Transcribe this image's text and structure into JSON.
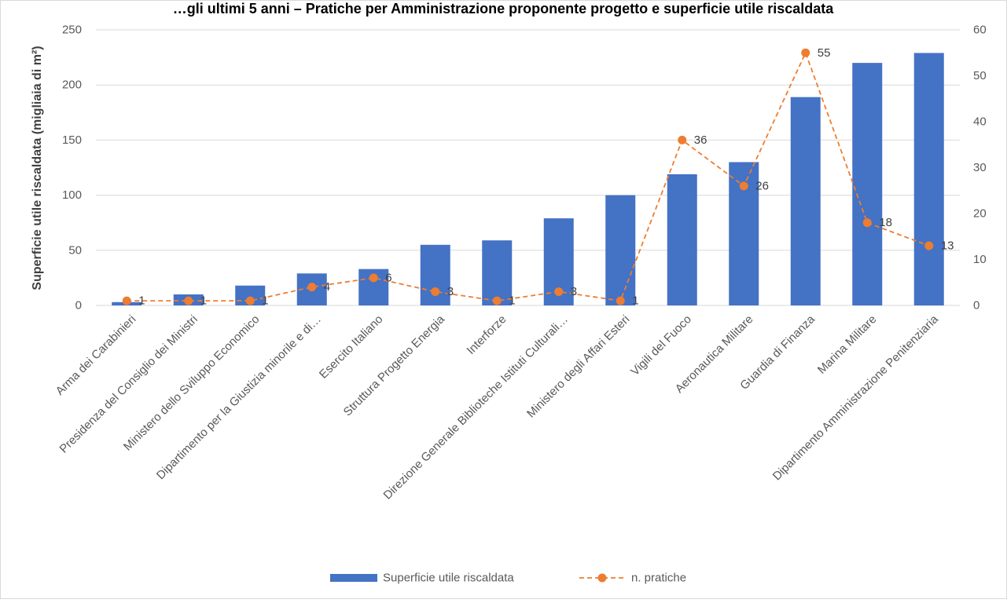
{
  "chart_data": {
    "type": "bar",
    "title": "…gli ultimi 5 anni – Pratiche per Amministrazione proponente progetto e superficie utile riscaldata",
    "ylabel": "Superficie utile riscaldata (migliaia di m²)",
    "ylim": [
      0,
      250
    ],
    "y_ticks": [
      0,
      50,
      100,
      150,
      200,
      250
    ],
    "y2lim": [
      0,
      60
    ],
    "y2_ticks": [
      0,
      10,
      20,
      30,
      40,
      50,
      60
    ],
    "grid": true,
    "legend_position": "bottom",
    "categories": [
      "Arma dei Carabinieri",
      "Presidenza del Consiglio dei Ministri",
      "Ministero dello Sviluppo Economico",
      "Dipartimento per la Giustizia minorile e di…",
      "Esercito Italiano",
      "Struttura Progetto Energia",
      "Interforze",
      "Direzione Generale Biblioteche Istituti Culturali…",
      "Ministero degli Affari Esteri",
      "Vigili del Fuoco",
      "Aeronautica Militare",
      "Guardia di Finanza",
      "Marina Militare",
      "Dipartimento Amministrazione Penitenziaria"
    ],
    "series": [
      {
        "name": "Superficie utile riscaldata",
        "type": "bar",
        "axis": "left",
        "color": "#4472c4",
        "values": [
          3,
          10,
          18,
          29,
          33,
          55,
          59,
          79,
          100,
          119,
          130,
          189,
          220,
          229
        ]
      },
      {
        "name": "n. pratiche",
        "type": "line",
        "axis": "right",
        "color": "#ed7d31",
        "style": "dashed",
        "marker": "circle",
        "values": [
          1,
          1,
          1,
          4,
          6,
          3,
          1,
          3,
          1,
          36,
          26,
          55,
          18,
          13
        ],
        "data_labels": [
          "1",
          "1",
          "1",
          "4",
          "6",
          "3",
          "1",
          "3",
          "1",
          "36",
          "26",
          "55",
          "18",
          "13"
        ]
      }
    ]
  }
}
